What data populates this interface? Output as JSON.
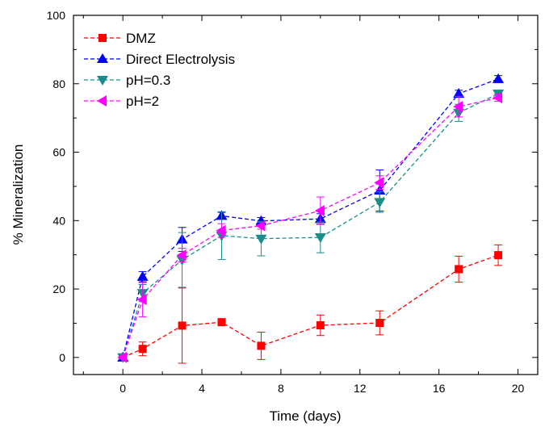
{
  "chart_data": {
    "type": "line",
    "title": "",
    "xlabel": "Time (days)",
    "ylabel": "% Mineralization",
    "xlim": [
      -2.5,
      21
    ],
    "ylim": [
      -5,
      100
    ],
    "xticks": [
      0,
      4,
      8,
      12,
      16,
      20
    ],
    "xtick_labels": [
      "0",
      "4",
      "8",
      "12",
      "16",
      "20"
    ],
    "yticks": [
      0,
      20,
      40,
      60,
      80,
      100
    ],
    "ytick_labels": [
      "0",
      "20",
      "40",
      "60",
      "80",
      "100"
    ],
    "grid": false,
    "legend_position": "top-left",
    "series": [
      {
        "name": "DMZ",
        "color": "#ff0000",
        "marker": "square",
        "x": [
          0,
          1,
          3,
          5,
          7,
          10,
          13,
          17,
          19
        ],
        "y": [
          0,
          2.5,
          9.3,
          10.3,
          3.4,
          9.4,
          10.1,
          25.8,
          29.9
        ],
        "err": [
          0.5,
          2.0,
          11.0,
          1.0,
          4.0,
          3.0,
          3.5,
          3.8,
          3.0
        ]
      },
      {
        "name": "Direct Electrolysis",
        "color": "#0000ff",
        "marker": "triangle-up",
        "x": [
          0,
          1,
          3,
          5,
          7,
          10,
          13,
          17,
          19
        ],
        "y": [
          0,
          23.6,
          34.5,
          41.4,
          39.9,
          40.5,
          48.8,
          77.1,
          81.4
        ],
        "err": [
          0.5,
          1.5,
          3.5,
          1.0,
          1.0,
          1.5,
          6.0,
          1.0,
          1.0
        ]
      },
      {
        "name": "pH=0.3",
        "color": "#1a8c8c",
        "marker": "triangle-down",
        "x": [
          0,
          1,
          3,
          5,
          7,
          10,
          13,
          17,
          19
        ],
        "y": [
          0,
          18.8,
          28.5,
          35.6,
          34.7,
          35.1,
          45.4,
          71.5,
          77.1
        ],
        "err": [
          0.5,
          2.5,
          8.0,
          7.0,
          5.0,
          4.5,
          3.0,
          2.5,
          1.0
        ]
      },
      {
        "name": "pH=2",
        "color": "#ff00ff",
        "marker": "triangle-left",
        "x": [
          0,
          1,
          3,
          5,
          7,
          10,
          13,
          17,
          19
        ],
        "y": [
          0,
          16.9,
          29.9,
          37.1,
          38.5,
          42.9,
          51.1,
          73.3,
          75.9
        ],
        "err": [
          0.5,
          5.0,
          2.0,
          2.0,
          1.0,
          4.0,
          2.0,
          3.0,
          1.0
        ]
      }
    ]
  }
}
